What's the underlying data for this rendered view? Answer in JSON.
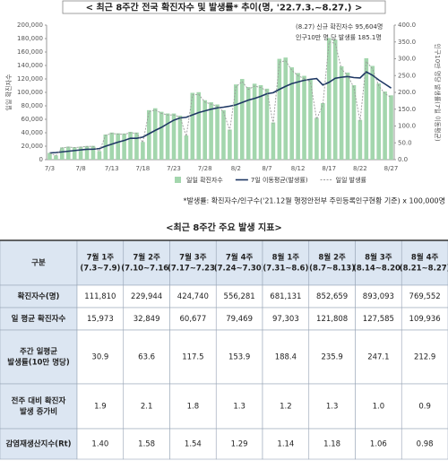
{
  "chart_data": {
    "type": "bar",
    "title": "< 최근 8주간 전국 확진자수 및 발생률* 추이(명, '22.7.3.~8.27.) >",
    "y_label": "일일 확진자수",
    "y2_label": "인구10만 명당 발생률(7일 이동평균)",
    "annotations": [
      "(8.27) 신규 확진자수 95,604명",
      "인구10만 명 당 발생률 185.1명"
    ],
    "footnote": "*발생률: 확진자수/인구수('21.12월 행정안전부 주민등록인구현황 기준) x 100,000명",
    "categories": [
      "7/3",
      null,
      null,
      null,
      null,
      "7/8",
      null,
      null,
      null,
      null,
      "7/13",
      null,
      null,
      null,
      null,
      "7/18",
      null,
      null,
      null,
      null,
      "7/23",
      null,
      null,
      null,
      null,
      "7/28",
      null,
      null,
      null,
      null,
      "8/2",
      null,
      null,
      null,
      null,
      "8/7",
      null,
      null,
      null,
      null,
      "8/12",
      null,
      null,
      null,
      null,
      "8/17",
      null,
      null,
      null,
      null,
      "8/22",
      null,
      null,
      null,
      null,
      "8/27"
    ],
    "series": [
      {
        "name": "일일 확진자수",
        "type": "bar",
        "color": "#a3d6ad",
        "values": [
          10059,
          6253,
          18147,
          19371,
          18511,
          19323,
          20286,
          20410,
          12693,
          37360,
          40266,
          39196,
          38882,
          41310,
          40342,
          26299,
          73582,
          76402,
          71170,
          68632,
          68551,
          65433,
          35883,
          99327,
          100285,
          88384,
          85285,
          81984,
          73589,
          44689,
          111789,
          119922,
          107894,
          112901,
          110666,
          105507,
          55292,
          149897,
          151792,
          137241,
          128714,
          124592,
          119603,
          62078,
          84128,
          180803,
          178574,
          138812,
          129411,
          110700,
          59046,
          150802,
          139339,
          113371,
          101236,
          95604
        ]
      },
      {
        "name": "7일 이동평균(발생률)",
        "type": "line",
        "axis": "y2",
        "color": "#1f3864",
        "values": [
          20,
          21,
          23,
          25,
          27,
          29,
          30.9,
          31,
          33,
          40,
          46,
          52,
          57,
          63.6,
          63.6,
          67,
          77,
          87,
          96,
          107,
          117.5,
          124,
          126,
          133,
          140,
          145,
          150,
          153.9,
          156,
          159,
          163,
          170,
          177,
          182,
          188.4,
          196,
          199,
          209,
          218,
          226,
          231,
          235.9,
          239,
          241,
          222,
          230,
          242,
          245,
          247.1,
          244,
          243,
          261,
          251,
          237,
          225,
          212.9
        ]
      },
      {
        "name": "일일 발생률",
        "type": "dotted",
        "axis": "y2",
        "color": "#9a9a9a",
        "values": [
          19.5,
          12.1,
          35.1,
          37.5,
          35.8,
          37.4,
          39.3,
          39.5,
          24.6,
          72.3,
          78.0,
          75.9,
          75.3,
          80.0,
          78.1,
          50.9,
          142.5,
          147.9,
          137.8,
          132.9,
          132.7,
          126.7,
          69.5,
          192.3,
          194.2,
          171.1,
          165.1,
          158.7,
          142.5,
          86.5,
          216.4,
          232.2,
          208.9,
          218.6,
          214.3,
          204.3,
          107.1,
          290.2,
          293.9,
          265.7,
          249.2,
          241.2,
          231.6,
          120.2,
          162.9,
          350.1,
          345.7,
          268.8,
          250.6,
          214.3,
          114.3,
          292.0,
          269.8,
          219.5,
          196.0,
          185.1
        ]
      }
    ],
    "ylim": [
      0,
      200000
    ],
    "yticks": [
      0,
      {
        "value": 20000,
        "label": "20,000"
      },
      {
        "value": 40000,
        "label": "40,000"
      },
      {
        "value": 60000,
        "label": "60,000"
      },
      {
        "value": 80000,
        "label": "80,000"
      },
      {
        "value": 100000,
        "label": "100,000"
      },
      {
        "value": 120000,
        "label": "120,000"
      },
      {
        "value": 140000,
        "label": "140,000"
      },
      {
        "value": 160000,
        "label": "160,000"
      },
      {
        "value": 180000,
        "label": "180,000"
      },
      {
        "value": 200000,
        "label": "200,000"
      }
    ],
    "y2lim": [
      0,
      400
    ],
    "y2ticks": [
      {
        "value": 0,
        "label": "0.0"
      },
      {
        "value": 50,
        "label": "50.0"
      },
      {
        "value": 100,
        "label": "100.0"
      },
      {
        "value": 150,
        "label": "150.0"
      },
      {
        "value": 200,
        "label": "200.0"
      },
      {
        "value": 250,
        "label": "250.0"
      },
      {
        "value": 300,
        "label": "300.0"
      },
      {
        "value": 350,
        "label": "350.0"
      },
      {
        "value": 400,
        "label": "400.0"
      }
    ],
    "grid": false,
    "legend": "bottom"
  },
  "table": {
    "title": "<최근 8주간 주요 발생 지표>",
    "header": [
      [
        "구분"
      ],
      [
        "7월 1주",
        "(7.3~7.9)"
      ],
      [
        "7월 2주",
        "(7.10~7.16)"
      ],
      [
        "7월 3주",
        "(7.17~7.23)"
      ],
      [
        "7월 4주",
        "(7.24~7.30)"
      ],
      [
        "8월 1주",
        "(7.31~8.6)"
      ],
      [
        "8월 2주",
        "(8.7~8.13)"
      ],
      [
        "8월 3주",
        "(8.14~8.20)"
      ],
      [
        "8월 4주",
        "(8.21~8.27)"
      ]
    ],
    "rows": [
      {
        "label": [
          "확진자수(명)"
        ],
        "cells": [
          "111,810",
          "229,944",
          "424,740",
          "556,281",
          "681,131",
          "852,659",
          "893,093",
          "769,552"
        ]
      },
      {
        "label": [
          "일 평균 확진자수"
        ],
        "cells": [
          "15,973",
          "32,849",
          "60,677",
          "79,469",
          "97,303",
          "121,808",
          "127,585",
          "109,936"
        ]
      },
      {
        "label": [
          "주간 일평균",
          "발생률(10만 명당)"
        ],
        "cells": [
          "30.9",
          "63.6",
          "117.5",
          "153.9",
          "188.4",
          "235.9",
          "247.1",
          "212.9"
        ]
      },
      {
        "label": [
          "전주 대비 확진자",
          "발생 증가비"
        ],
        "cells": [
          "1.9",
          "2.1",
          "1.8",
          "1.3",
          "1.2",
          "1.3",
          "1.0",
          "0.9"
        ]
      },
      {
        "label": [
          "감염재생산지수(Rt)"
        ],
        "cells": [
          "1.40",
          "1.58",
          "1.54",
          "1.29",
          "1.14",
          "1.18",
          "1.06",
          "0.98"
        ]
      }
    ]
  }
}
